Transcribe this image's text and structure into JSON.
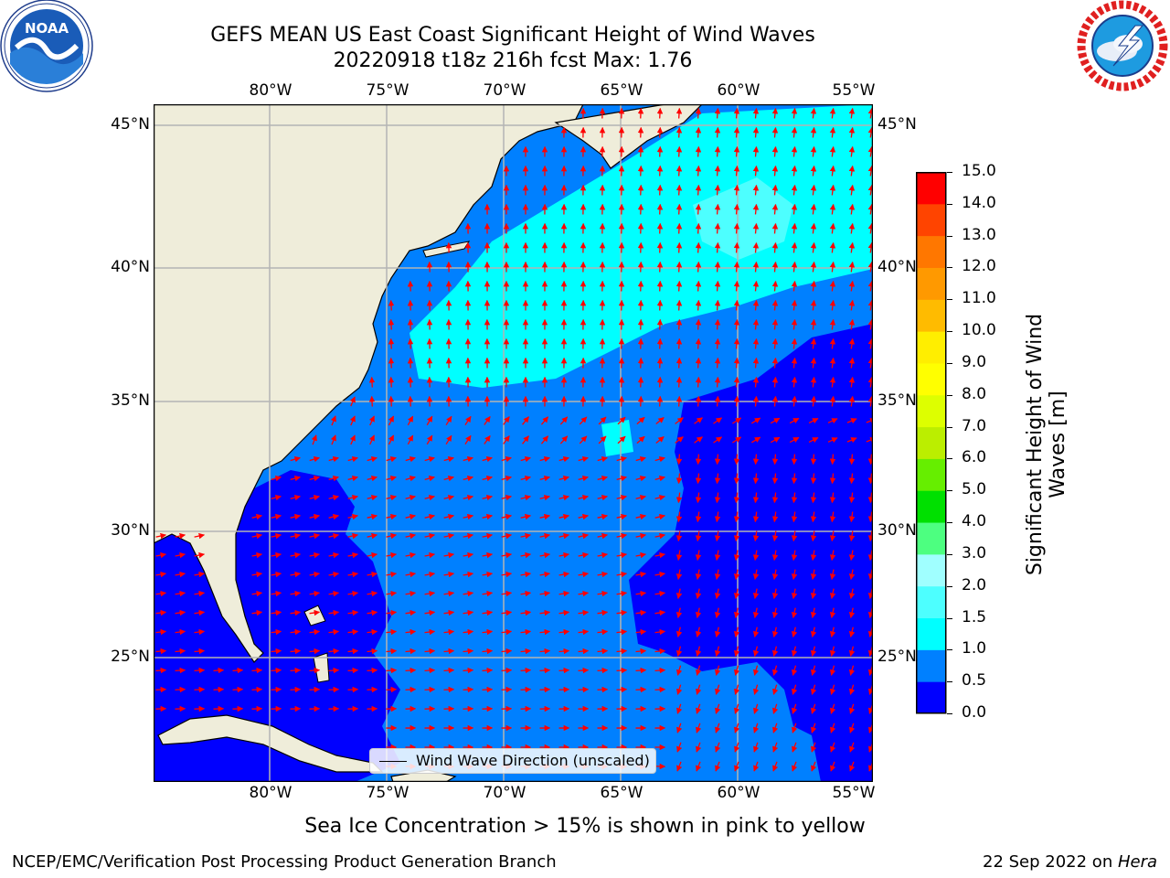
{
  "title": {
    "line1": "GEFS MEAN US East Coast Significant Height of Wind Waves",
    "line2": "20220918 t18z 216h fcst    Max: 1.76"
  },
  "map": {
    "lon_labels": [
      "80°W",
      "75°W",
      "70°W",
      "65°W",
      "60°W",
      "55°W"
    ],
    "lat_labels": [
      "45°N",
      "40°N",
      "35°N",
      "30°N",
      "25°N"
    ],
    "land_color": "#efedda",
    "grid_color": "#b4b4b4",
    "arrow_color": "#ff0000"
  },
  "legend": {
    "label": "Wind Wave Direction (unscaled)"
  },
  "colorbar": {
    "label_line1": "Significant Height of Wind",
    "label_line2": "Waves [m]",
    "ticks": [
      "0.0",
      "0.5",
      "1.0",
      "1.5",
      "2.0",
      "3.0",
      "4.0",
      "5.0",
      "6.0",
      "7.0",
      "8.0",
      "9.0",
      "10.0",
      "11.0",
      "12.0",
      "13.0",
      "14.0",
      "15.0"
    ],
    "colors": [
      "#0000ff",
      "#0080ff",
      "#00ffff",
      "#4dffff",
      "#a0ffff",
      "#4dff80",
      "#00e000",
      "#66ee00",
      "#bbee00",
      "#ddff00",
      "#ffff00",
      "#ffee00",
      "#ffbb00",
      "#ff9900",
      "#ff7700",
      "#ff4400",
      "#ff0000"
    ]
  },
  "subcaption": "Sea Ice Concentration > 15% is shown in pink to yellow",
  "footer": {
    "left": "NCEP/EMC/Verification Post Processing Product Generation Branch",
    "right_prefix": "22 Sep 2022 on ",
    "right_italic": "Hera"
  },
  "logos": {
    "left_text": "NOAA",
    "right_text": "NATIONAL WEATHER SERVICE"
  }
}
